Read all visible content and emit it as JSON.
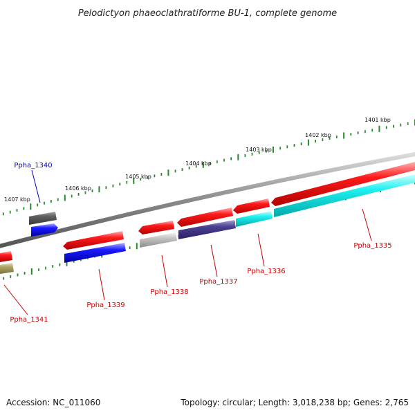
{
  "title": "Pelodictyon phaeoclathratiforme BU-1, complete genome",
  "footer": {
    "accession": "Accession: NC_011060",
    "summary": "Topology: circular; Length: 3,018,238 bp; Genes: 2,765"
  },
  "colors": {
    "backbone": "#808080",
    "tick": "#2a8a2a",
    "red": "#ff1010",
    "blue": "#1010ff",
    "cyan": "#10f0f0",
    "navy": "#4a4090",
    "gray": "#c8c8c8",
    "dark_gray": "#606060",
    "olive": "#b0a868",
    "label_red": "#cc0000",
    "label_blue": "#0000cc"
  },
  "kbp_labels": [
    {
      "id": "1401",
      "text": "1401 kbp"
    },
    {
      "id": "1402",
      "text": "1402 kbp"
    },
    {
      "id": "1403",
      "text": "1403 kbp"
    },
    {
      "id": "1404",
      "text": "1404 kbp"
    },
    {
      "id": "1405",
      "text": "1405 kbp"
    },
    {
      "id": "1406",
      "text": "1406 kbp"
    },
    {
      "id": "1407",
      "text": "1407 kbp"
    }
  ],
  "genes": [
    {
      "id": "1335",
      "label": "Ppha_1335",
      "color_key": "label_red"
    },
    {
      "id": "1336",
      "label": "Ppha_1336",
      "color_key": "label_red"
    },
    {
      "id": "1337",
      "label": "Ppha_1337",
      "color_key": "label_red"
    },
    {
      "id": "1338",
      "label": "Ppha_1338",
      "color_key": "label_red"
    },
    {
      "id": "1339",
      "label": "Ppha_1339",
      "color_key": "label_red"
    },
    {
      "id": "1340",
      "label": "Ppha_1340",
      "color_key": "label_blue"
    },
    {
      "id": "1341",
      "label": "Ppha_1341",
      "color_key": "label_red"
    }
  ]
}
